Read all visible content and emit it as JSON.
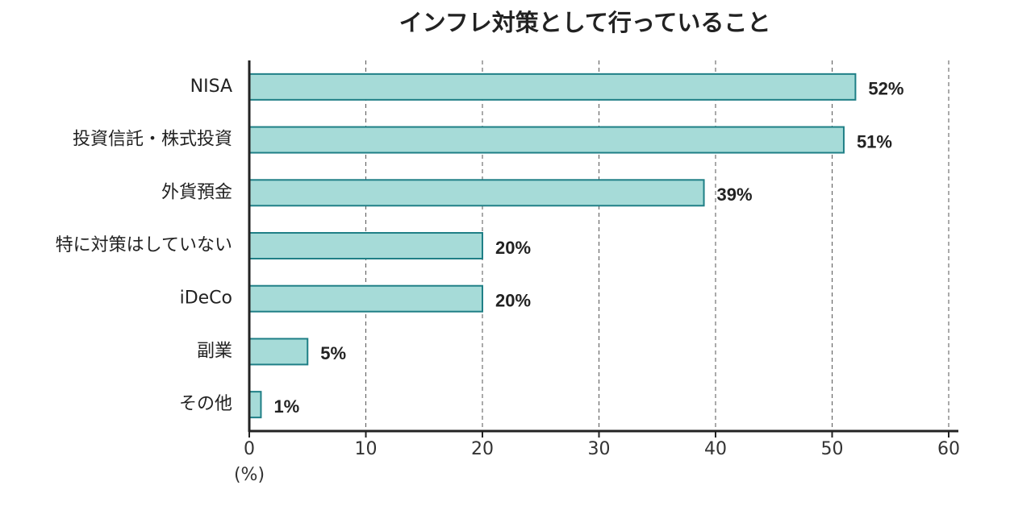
{
  "chart_data": {
    "type": "barh",
    "title": "インフレ対策として行っていること",
    "categories": [
      "NISA",
      "投資信託・株式投資",
      "外貨預金",
      "特に対策はしていない",
      "iDeCo",
      "副業",
      "その他"
    ],
    "values": [
      52,
      51,
      39,
      20,
      20,
      5,
      1
    ],
    "value_labels": [
      "52%",
      "51%",
      "39%",
      "20%",
      "20%",
      "5%",
      "1%"
    ],
    "color": "#a6dbd8",
    "edge_color": "#1f7f86",
    "xlabel": "(%)",
    "xlim": [
      0,
      60
    ],
    "xticks": [
      0,
      10,
      20,
      30,
      40,
      50,
      60
    ],
    "grid": true
  }
}
